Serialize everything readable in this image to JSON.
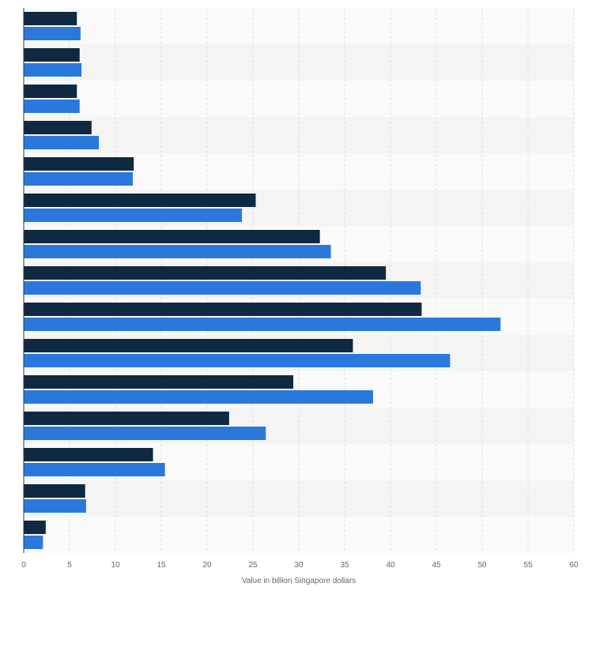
{
  "chart_data": {
    "type": "bar",
    "orientation": "horizontal",
    "categories": [
      "",
      "",
      "",
      "",
      "",
      "",
      "",
      "",
      "",
      "",
      "",
      "",
      "",
      "",
      ""
    ],
    "series": [
      {
        "color": "#0f2942",
        "values": [
          5.8,
          6.1,
          5.8,
          7.4,
          12.0,
          25.3,
          32.3,
          39.5,
          43.4,
          35.9,
          29.4,
          22.4,
          14.1,
          6.7,
          2.4
        ]
      },
      {
        "color": "#2a78dc",
        "values": [
          6.2,
          6.3,
          6.1,
          8.2,
          11.9,
          23.8,
          33.5,
          43.3,
          52.0,
          46.5,
          38.1,
          26.4,
          15.4,
          6.8,
          2.1
        ]
      }
    ],
    "xlim": [
      0,
      60
    ],
    "xticks": [
      "0",
      "5",
      "10",
      "15",
      "20",
      "25",
      "30",
      "35",
      "40",
      "45",
      "50",
      "55",
      "60"
    ],
    "xlabel": "Value in billion Singapore dollars",
    "grid": true,
    "legend": "none"
  },
  "colors": {
    "band_light": "#f4f4f4",
    "band_lighter": "#fafafa",
    "grid": "#dddddd",
    "axis": "#333333"
  }
}
